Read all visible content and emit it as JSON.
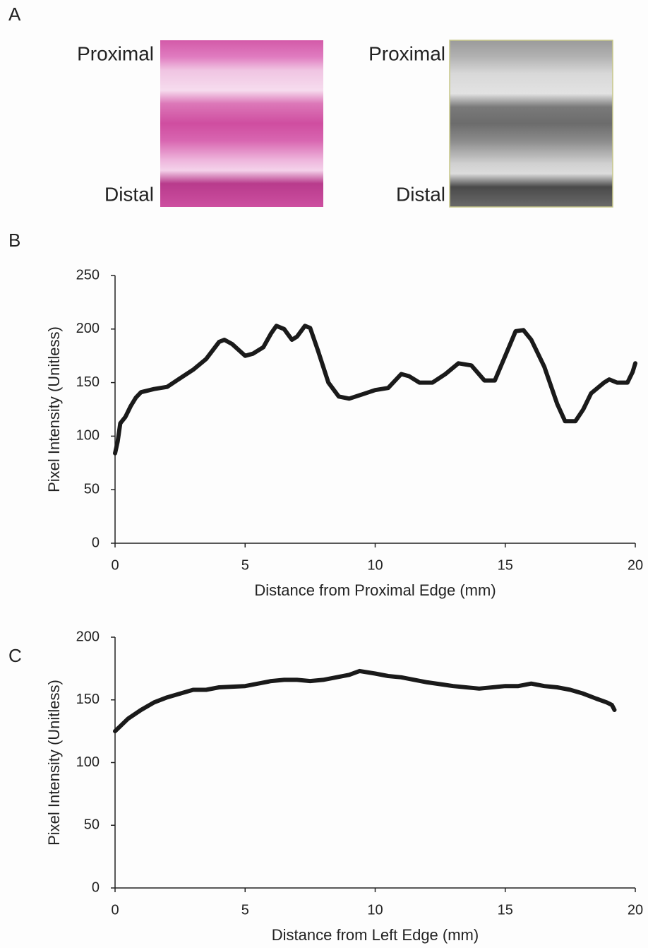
{
  "panel_a": {
    "label": "A",
    "images": [
      {
        "top": "Proximal",
        "bottom": "Distal"
      },
      {
        "top": "Proximal",
        "bottom": "Distal"
      }
    ]
  },
  "chart_data": [
    {
      "type": "line",
      "panel_label": "B",
      "x_label": "Distance from Proximal Edge (mm)",
      "y_label": "Pixel Intensity (Unitless)",
      "x": [
        0,
        0.1,
        0.2,
        0.4,
        0.6,
        0.8,
        1.0,
        1.5,
        2.0,
        2.5,
        3.0,
        3.5,
        4.0,
        4.2,
        4.5,
        5.0,
        5.3,
        5.7,
        6.0,
        6.2,
        6.5,
        6.8,
        7.0,
        7.3,
        7.5,
        7.8,
        8.2,
        8.6,
        9.0,
        9.5,
        10.0,
        10.5,
        11.0,
        11.3,
        11.7,
        12.2,
        12.7,
        13.2,
        13.7,
        14.2,
        14.6,
        15.0,
        15.4,
        15.7,
        16.0,
        16.5,
        17.0,
        17.3,
        17.7,
        18.0,
        18.3,
        18.8,
        19.0,
        19.3,
        19.7,
        19.9,
        20.0
      ],
      "values": [
        84,
        95,
        112,
        118,
        128,
        136,
        141,
        144,
        146,
        154,
        162,
        172,
        188,
        190,
        186,
        175,
        177,
        183,
        196,
        203,
        200,
        190,
        193,
        203,
        201,
        180,
        150,
        137,
        135,
        139,
        143,
        145,
        158,
        156,
        150,
        150,
        158,
        168,
        166,
        152,
        152,
        175,
        198,
        199,
        190,
        165,
        130,
        114,
        114,
        125,
        140,
        150,
        153,
        150,
        150,
        160,
        168
      ],
      "color": "#1a1a1a",
      "xlim": [
        0,
        20
      ],
      "xticks": [
        0,
        5,
        10,
        15,
        20
      ],
      "ylim": [
        0,
        250
      ],
      "yticks": [
        0,
        50,
        100,
        150,
        200,
        250
      ]
    },
    {
      "type": "line",
      "panel_label": "C",
      "x_label": "Distance from Left Edge (mm)",
      "y_label": "Pixel Intensity (Unitless)",
      "x": [
        0,
        0.2,
        0.5,
        1,
        1.5,
        2,
        2.5,
        3,
        3.5,
        4,
        5,
        5.5,
        6,
        6.5,
        7,
        7.5,
        8,
        9,
        9.4,
        10,
        10.5,
        11,
        12,
        13,
        14,
        15,
        15.5,
        16,
        16.5,
        17,
        17.5,
        18,
        18.5,
        18.9,
        19.1,
        19.2
      ],
      "values": [
        125,
        129,
        135,
        142,
        148,
        152,
        155,
        158,
        158,
        160,
        161,
        163,
        165,
        166,
        166,
        165,
        166,
        170,
        173,
        171,
        169,
        168,
        164,
        161,
        159,
        161,
        161,
        163,
        161,
        160,
        158,
        155,
        151,
        148,
        146,
        142
      ],
      "color": "#1a1a1a",
      "xlim": [
        0,
        20
      ],
      "xticks": [
        0,
        5,
        10,
        15,
        20
      ],
      "ylim": [
        0,
        200
      ],
      "yticks": [
        0,
        50,
        100,
        150,
        200
      ]
    }
  ]
}
